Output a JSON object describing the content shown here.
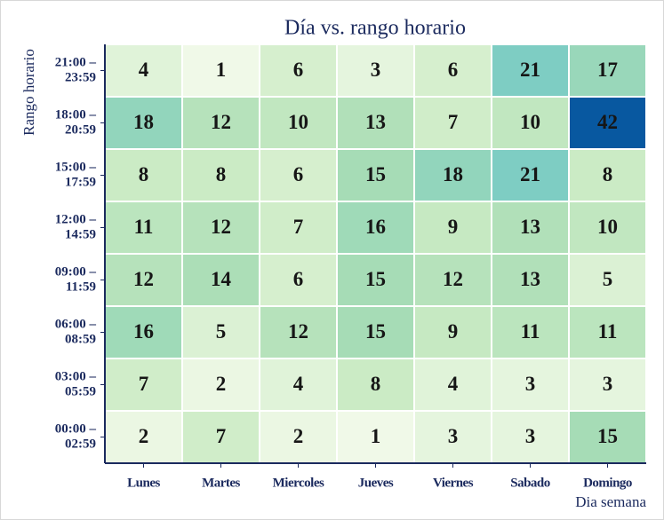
{
  "chart_data": {
    "type": "heatmap",
    "title": "Día vs. rango horario",
    "x_label": "Dia semana",
    "y_label": "Rango horario",
    "x_categories": [
      "Lunes",
      "Martes",
      "Miercoles",
      "Jueves",
      "Viernes",
      "Sabado",
      "Domingo"
    ],
    "y_categories": [
      [
        "21:00 –",
        "23:59"
      ],
      [
        "18:00 –",
        "20:59"
      ],
      [
        "15:00 –",
        "17:59"
      ],
      [
        "12:00 –",
        "14:59"
      ],
      [
        "09:00 –",
        "11:59"
      ],
      [
        "06:00 –",
        "08:59"
      ],
      [
        "03:00 –",
        "05:59"
      ],
      [
        "00:00 –",
        "02:59"
      ]
    ],
    "values": [
      [
        4,
        1,
        6,
        3,
        6,
        21,
        17
      ],
      [
        18,
        12,
        10,
        13,
        7,
        10,
        42
      ],
      [
        8,
        8,
        6,
        15,
        18,
        21,
        8
      ],
      [
        11,
        12,
        7,
        16,
        9,
        13,
        10
      ],
      [
        12,
        14,
        6,
        15,
        12,
        13,
        5
      ],
      [
        16,
        5,
        12,
        15,
        9,
        11,
        11
      ],
      [
        7,
        2,
        4,
        8,
        4,
        3,
        3
      ],
      [
        2,
        7,
        2,
        1,
        3,
        3,
        15
      ]
    ],
    "colormap": [
      "#f0f9e8",
      "#ccebc5",
      "#a8ddb5",
      "#7bccc4",
      "#4eb3d3",
      "#2b8cbe",
      "#0858a0"
    ]
  }
}
